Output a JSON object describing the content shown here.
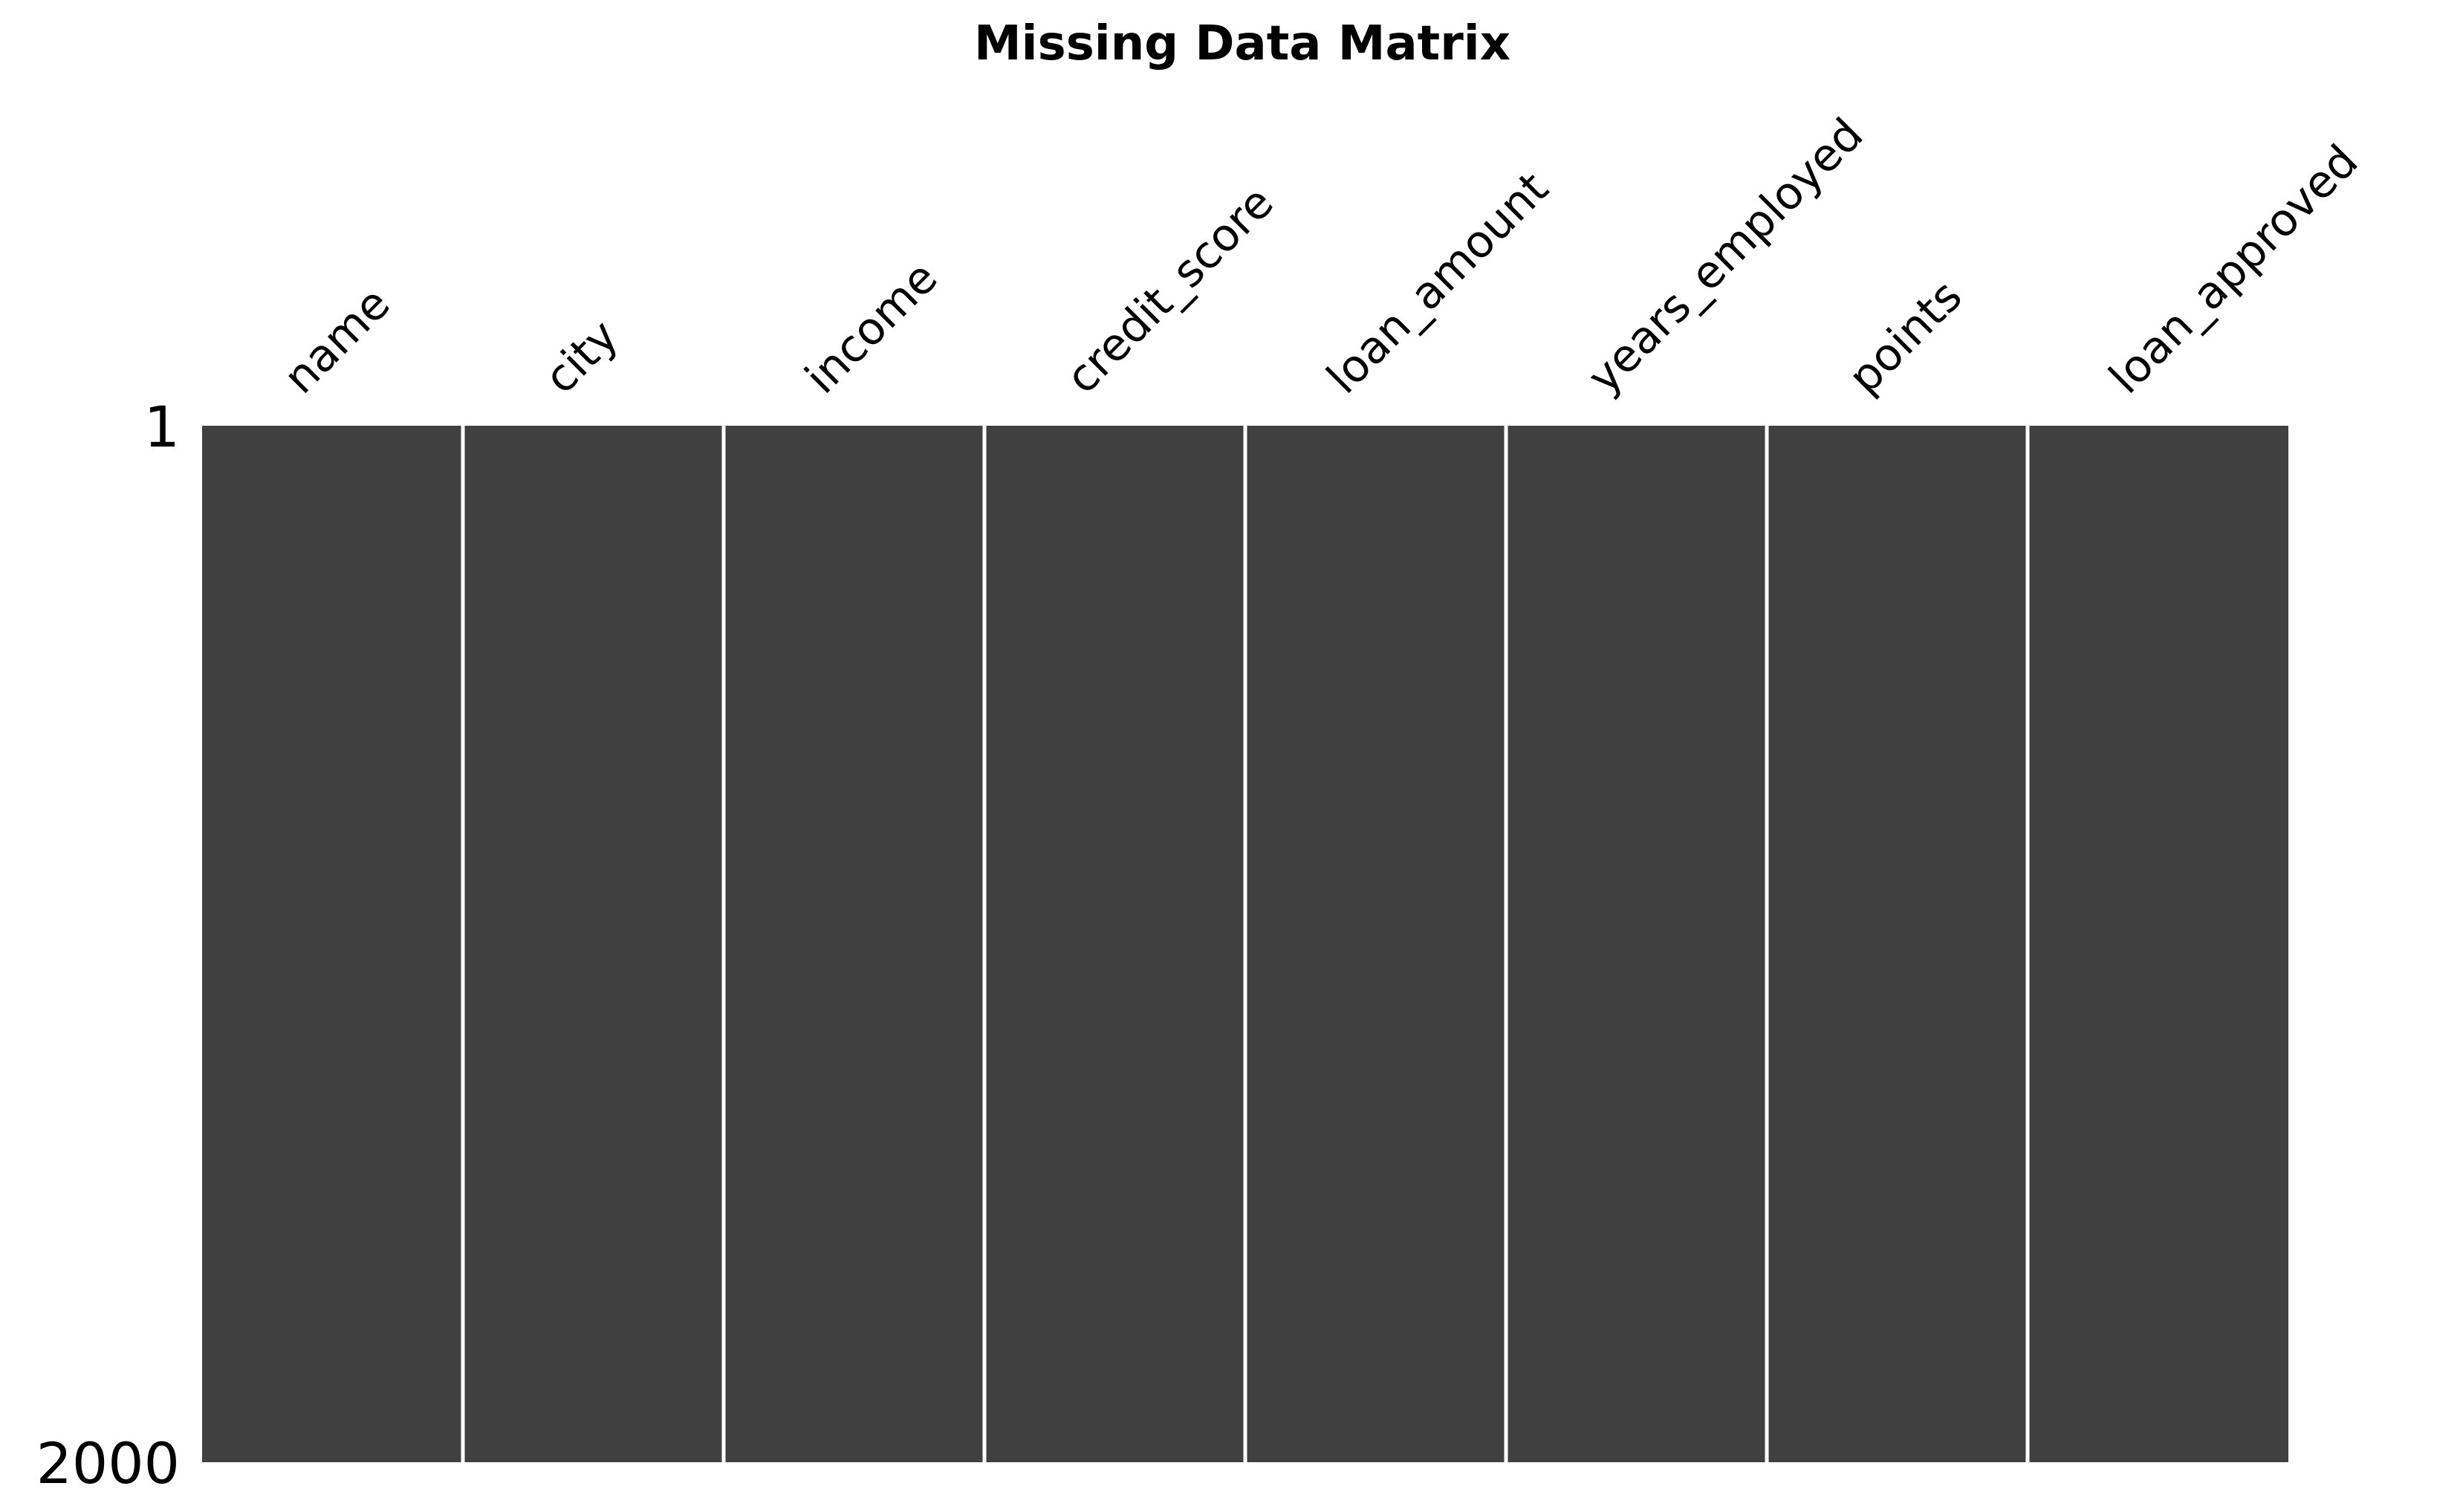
{
  "chart_data": {
    "type": "heatmap",
    "title": "Missing Data Matrix",
    "columns": [
      "name",
      "city",
      "income",
      "credit_score",
      "loan_amount",
      "years_employed",
      "points",
      "loan_approved"
    ],
    "row_range": [
      1,
      2000
    ],
    "row_tick_labels": [
      "1",
      "2000"
    ],
    "missing_counts": [
      0,
      0,
      0,
      0,
      0,
      0,
      0,
      0
    ],
    "present_color": "#404040",
    "missing_color": "#ffffff",
    "separator_color": "#ffffff"
  }
}
